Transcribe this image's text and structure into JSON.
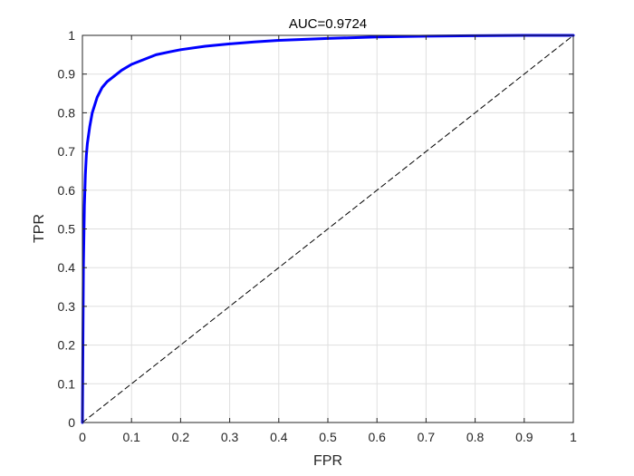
{
  "chart_data": {
    "type": "line",
    "title": "AUC=0.9724",
    "xlabel": "FPR",
    "ylabel": "TPR",
    "xlim": [
      0,
      1
    ],
    "ylim": [
      0,
      1
    ],
    "grid": true,
    "x_ticks": [
      "0",
      "0.1",
      "0.2",
      "0.3",
      "0.4",
      "0.5",
      "0.6",
      "0.7",
      "0.8",
      "0.9",
      "1"
    ],
    "y_ticks": [
      "0",
      "0.1",
      "0.2",
      "0.3",
      "0.4",
      "0.5",
      "0.6",
      "0.7",
      "0.8",
      "0.9",
      "1"
    ],
    "series": [
      {
        "color": "#0000ff",
        "style": "solid",
        "x": [
          0,
          0.002,
          0.004,
          0.006,
          0.008,
          0.01,
          0.015,
          0.02,
          0.03,
          0.04,
          0.05,
          0.06,
          0.07,
          0.08,
          0.1,
          0.12,
          0.15,
          0.18,
          0.2,
          0.25,
          0.3,
          0.35,
          0.4,
          0.5,
          0.6,
          0.7,
          0.8,
          0.9,
          1.0
        ],
        "y": [
          0,
          0.4,
          0.56,
          0.64,
          0.69,
          0.72,
          0.765,
          0.8,
          0.84,
          0.865,
          0.88,
          0.89,
          0.9,
          0.91,
          0.925,
          0.935,
          0.95,
          0.958,
          0.963,
          0.972,
          0.978,
          0.983,
          0.987,
          0.992,
          0.996,
          0.998,
          0.999,
          1.0,
          1.0
        ]
      },
      {
        "color": "#000000",
        "style": "dashed",
        "x": [
          0,
          1
        ],
        "y": [
          0,
          1
        ]
      }
    ]
  }
}
